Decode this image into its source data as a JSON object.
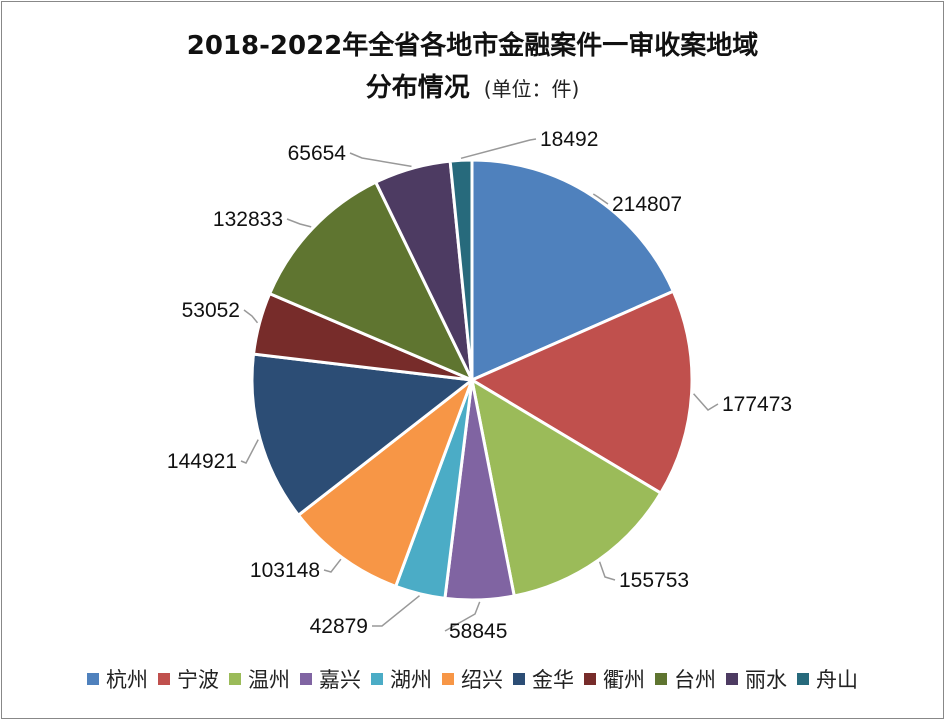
{
  "chart_data": {
    "type": "pie",
    "title_line1": "2018-2022年全省各地市金融案件一审收案地域",
    "title_line2": "分布情况",
    "title_unit": "(单位：件)",
    "categories": [
      "杭州",
      "宁波",
      "温州",
      "嘉兴",
      "湖州",
      "绍兴",
      "金华",
      "衢州",
      "台州",
      "丽水",
      "舟山"
    ],
    "values": [
      214807,
      177473,
      155753,
      58845,
      42879,
      103148,
      144921,
      53052,
      132833,
      65654,
      18492
    ],
    "colors": [
      "#4f81bd",
      "#c0504d",
      "#9bbb59",
      "#8064a2",
      "#4bacc6",
      "#f79646",
      "#2c4d75",
      "#772c2a",
      "#5f7530",
      "#4d3b62",
      "#276a7c"
    ],
    "legend_position": "bottom",
    "start_angle": "12 o'clock",
    "direction": "clockwise"
  }
}
